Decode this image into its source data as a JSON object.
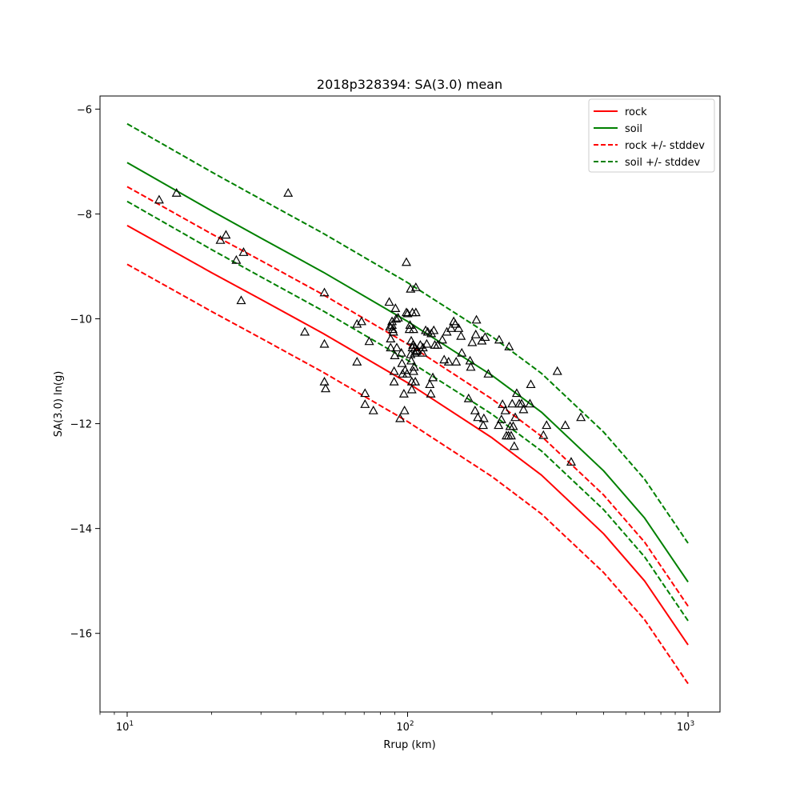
{
  "chart_data": {
    "type": "scatter",
    "title": "2018p328394: SA(3.0) mean",
    "xlabel": "Rrup (km)",
    "ylabel": "SA(3.0) ln(g)",
    "x_scale": "log",
    "xlim": [
      8,
      1300
    ],
    "ylim": [
      -17.5,
      -5.75
    ],
    "x_ticks": [
      10,
      100,
      1000
    ],
    "x_tick_labels": [
      {
        "base": "10",
        "exp": "1"
      },
      {
        "base": "10",
        "exp": "2"
      },
      {
        "base": "10",
        "exp": "3"
      }
    ],
    "y_ticks": [
      -16,
      -14,
      -12,
      -10,
      -8,
      -6
    ],
    "y_tick_labels": [
      "−16",
      "−14",
      "−12",
      "−10",
      "−8",
      "−6"
    ],
    "grid": false,
    "legend_position": "top-right",
    "series": [
      {
        "name": "rock",
        "style": "solid",
        "color": "#ff0000",
        "x": [
          10,
          20,
          30,
          50,
          100,
          200,
          300,
          500,
          700,
          1000
        ],
        "y": [
          -8.22,
          -9.12,
          -9.63,
          -10.28,
          -11.22,
          -12.27,
          -12.98,
          -14.1,
          -15.0,
          -16.22
        ]
      },
      {
        "name": "soil",
        "style": "solid",
        "color": "#008000",
        "x": [
          10,
          20,
          30,
          50,
          100,
          200,
          300,
          500,
          700,
          1000
        ],
        "y": [
          -7.02,
          -7.94,
          -8.46,
          -9.11,
          -10.05,
          -11.08,
          -11.78,
          -12.9,
          -13.8,
          -15.02
        ]
      },
      {
        "name": "rock +/- stddev",
        "style": "dashed",
        "color": "#ff0000",
        "x": [
          10,
          20,
          30,
          50,
          100,
          200,
          300,
          500,
          700,
          1000
        ],
        "y": [
          -7.48,
          -8.38,
          -8.89,
          -9.54,
          -10.48,
          -11.53,
          -12.24,
          -13.36,
          -14.26,
          -15.48
        ]
      },
      {
        "name": "",
        "style": "dashed",
        "color": "#ff0000",
        "x": [
          10,
          20,
          30,
          50,
          100,
          200,
          300,
          500,
          700,
          1000
        ],
        "y": [
          -8.96,
          -9.86,
          -10.37,
          -11.02,
          -11.96,
          -13.01,
          -13.72,
          -14.84,
          -15.74,
          -16.96
        ]
      },
      {
        "name": "soil +/- stddev",
        "style": "dashed",
        "color": "#008000",
        "x": [
          10,
          20,
          30,
          50,
          100,
          200,
          300,
          500,
          700,
          1000
        ],
        "y": [
          -6.28,
          -7.2,
          -7.72,
          -8.37,
          -9.31,
          -10.34,
          -11.04,
          -12.16,
          -13.06,
          -14.28
        ]
      },
      {
        "name": "",
        "style": "dashed",
        "color": "#008000",
        "x": [
          10,
          20,
          30,
          50,
          100,
          200,
          300,
          500,
          700,
          1000
        ],
        "y": [
          -7.76,
          -8.68,
          -9.2,
          -9.85,
          -10.79,
          -11.82,
          -12.52,
          -13.64,
          -14.54,
          -15.76
        ]
      }
    ],
    "observations": {
      "marker": "triangle",
      "color": "#000000",
      "points": [
        [
          13,
          -7.73
        ],
        [
          15,
          -7.6
        ],
        [
          21.5,
          -8.5
        ],
        [
          22.5,
          -8.4
        ],
        [
          24.5,
          -8.88
        ],
        [
          26,
          -8.73
        ],
        [
          25.5,
          -9.65
        ],
        [
          37.5,
          -7.6
        ],
        [
          43,
          -10.25
        ],
        [
          50.5,
          -9.5
        ],
        [
          50.5,
          -10.48
        ],
        [
          50.5,
          -11.2
        ],
        [
          51,
          -11.33
        ],
        [
          66,
          -10.1
        ],
        [
          66,
          -10.82
        ],
        [
          68.5,
          -10.05
        ],
        [
          70.5,
          -11.42
        ],
        [
          70.5,
          -11.63
        ],
        [
          73,
          -10.43
        ],
        [
          75.5,
          -11.75
        ],
        [
          86,
          -9.68
        ],
        [
          86.5,
          -10.15
        ],
        [
          87,
          -10.38
        ],
        [
          87,
          -10.55
        ],
        [
          88,
          -10.05
        ],
        [
          88,
          -10.12
        ],
        [
          88.5,
          -10.2
        ],
        [
          89,
          -10.25
        ],
        [
          89.5,
          -11.0
        ],
        [
          89.5,
          -11.2
        ],
        [
          90,
          -10.7
        ],
        [
          90.5,
          -9.8
        ],
        [
          91,
          -10.0
        ],
        [
          91.5,
          -10.55
        ],
        [
          92.5,
          -9.98
        ],
        [
          94,
          -11.9
        ],
        [
          95,
          -10.65
        ],
        [
          95.5,
          -10.85
        ],
        [
          96,
          -11.05
        ],
        [
          97,
          -11.43
        ],
        [
          97.5,
          -11.75
        ],
        [
          98,
          -10.98
        ],
        [
          99,
          -9.88
        ],
        [
          99,
          -8.92
        ],
        [
          99.5,
          -11.05
        ],
        [
          100,
          -9.9
        ],
        [
          101.5,
          -10.2
        ],
        [
          102,
          -10.12
        ],
        [
          102.5,
          -9.43
        ],
        [
          102.5,
          -10.68
        ],
        [
          103,
          -10.42
        ],
        [
          103,
          -10.8
        ],
        [
          103.5,
          -11.2
        ],
        [
          103.5,
          -11.35
        ],
        [
          104,
          -9.88
        ],
        [
          104,
          -10.55
        ],
        [
          104.5,
          -10.5
        ],
        [
          105,
          -10.2
        ],
        [
          105,
          -11.0
        ],
        [
          105.5,
          -10.92
        ],
        [
          106,
          -10.65
        ],
        [
          106.5,
          -10.55
        ],
        [
          106.5,
          -11.2
        ],
        [
          107,
          -9.4
        ],
        [
          107,
          -9.88
        ],
        [
          107.5,
          -10.62
        ],
        [
          108.5,
          -10.6
        ],
        [
          111,
          -10.5
        ],
        [
          113,
          -10.65
        ],
        [
          113.5,
          -10.55
        ],
        [
          116,
          -10.22
        ],
        [
          117,
          -10.48
        ],
        [
          118,
          -10.25
        ],
        [
          120,
          -11.25
        ],
        [
          121,
          -11.43
        ],
        [
          121.5,
          -10.28
        ],
        [
          123,
          -11.12
        ],
        [
          124,
          -10.22
        ],
        [
          125,
          -10.5
        ],
        [
          128,
          -10.5
        ],
        [
          133,
          -10.4
        ],
        [
          135,
          -10.78
        ],
        [
          138,
          -10.25
        ],
        [
          140,
          -10.82
        ],
        [
          143,
          -10.18
        ],
        [
          146,
          -10.05
        ],
        [
          148,
          -10.1
        ],
        [
          149,
          -10.82
        ],
        [
          152,
          -10.18
        ],
        [
          155,
          -10.33
        ],
        [
          156,
          -10.65
        ],
        [
          165,
          -11.52
        ],
        [
          167,
          -10.8
        ],
        [
          168,
          -10.92
        ],
        [
          170,
          -10.45
        ],
        [
          174,
          -11.75
        ],
        [
          175,
          -10.3
        ],
        [
          176,
          -10.02
        ],
        [
          178,
          -11.88
        ],
        [
          184,
          -10.42
        ],
        [
          186,
          -12.03
        ],
        [
          187,
          -11.9
        ],
        [
          189,
          -10.35
        ],
        [
          194,
          -11.05
        ],
        [
          211,
          -12.03
        ],
        [
          212,
          -10.4
        ],
        [
          216,
          -11.92
        ],
        [
          218,
          -11.63
        ],
        [
          223,
          -11.75
        ],
        [
          225,
          -12.23
        ],
        [
          229,
          -12.23
        ],
        [
          230,
          -10.53
        ],
        [
          232,
          -12.05
        ],
        [
          234,
          -12.23
        ],
        [
          236,
          -11.62
        ],
        [
          238,
          -12.05
        ],
        [
          240,
          -12.43
        ],
        [
          242,
          -11.88
        ],
        [
          245,
          -11.42
        ],
        [
          250,
          -11.62
        ],
        [
          255,
          -11.62
        ],
        [
          259,
          -11.73
        ],
        [
          273,
          -11.62
        ],
        [
          275,
          -11.25
        ],
        [
          305,
          -12.22
        ],
        [
          313,
          -12.03
        ],
        [
          342,
          -11.0
        ],
        [
          365,
          -12.03
        ],
        [
          383,
          -12.73
        ],
        [
          415,
          -11.88
        ]
      ]
    }
  }
}
